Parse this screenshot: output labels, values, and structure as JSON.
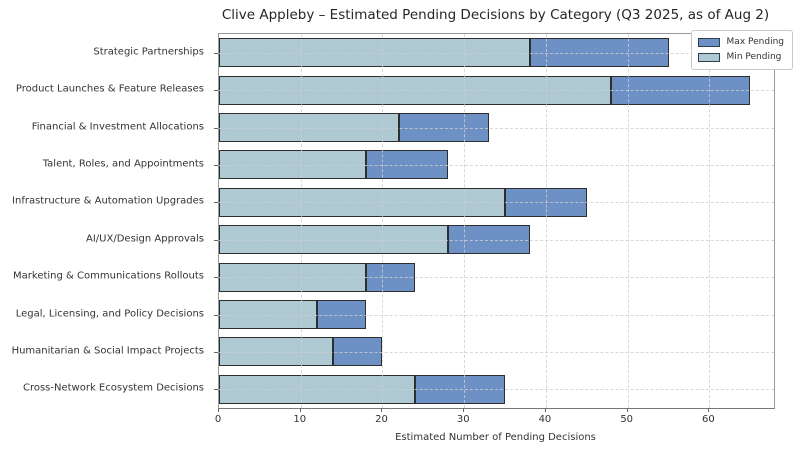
{
  "title": "Clive Appleby – Estimated Pending Decisions by Category (Q3 2025, as of Aug 2)",
  "xlabel": "Estimated Number of Pending Decisions",
  "legend": {
    "position": "upper right",
    "items": [
      {
        "label": "Max Pending",
        "color": "#6d91c5"
      },
      {
        "label": "Min Pending",
        "color": "#aec9d2"
      }
    ]
  },
  "colors": {
    "max_pending": "#6d91c5",
    "min_pending": "#aec9d2",
    "bar_edge": "#2e2e2e",
    "grid": "#cfcfcf",
    "spine": "#9a9a9a",
    "text": "#333333"
  },
  "chart_data": {
    "type": "bar",
    "orientation": "horizontal",
    "title": "Clive Appleby – Estimated Pending Decisions by Category (Q3 2025, as of Aug 2)",
    "xlabel": "Estimated Number of Pending Decisions",
    "categories": [
      "Strategic Partnerships",
      "Product Launches & Feature Releases",
      "Financial & Investment Allocations",
      "Talent, Roles, and Appointments",
      "Infrastructure & Automation Upgrades",
      "AI/UX/Design Approvals",
      "Marketing & Communications Rollouts",
      "Legal, Licensing, and Policy Decisions",
      "Humanitarian & Social Impact Projects",
      "Cross-Network Ecosystem Decisions"
    ],
    "series": [
      {
        "name": "Min Pending",
        "color": "#aec9d2",
        "values": [
          38,
          48,
          22,
          18,
          35,
          28,
          18,
          12,
          14,
          24
        ]
      },
      {
        "name": "Max Pending",
        "color": "#6d91c5",
        "values": [
          55,
          65,
          33,
          28,
          45,
          38,
          24,
          18,
          20,
          35
        ]
      }
    ],
    "bar_style": "light segment spans 0 to min; dark segment spans min to max",
    "xticks": [
      0,
      10,
      20,
      30,
      40,
      50,
      60
    ],
    "xlim": [
      0,
      67.9
    ],
    "grid": true,
    "legend_position": "upper right"
  }
}
